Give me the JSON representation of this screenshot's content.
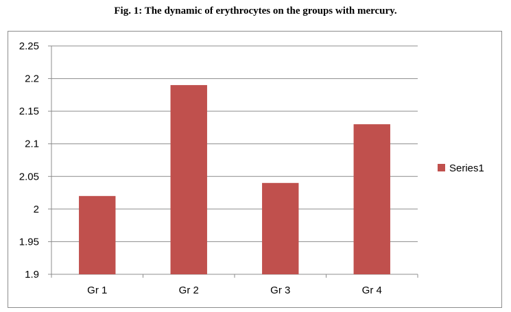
{
  "figure_title": "Fig. 1: The dynamic of erythrocytes on the groups with mercury.",
  "colors": {
    "bar": "#c0504d",
    "grid": "#8c8c8c",
    "axis": "#8c8c8c"
  },
  "chart_data": {
    "type": "bar",
    "title": "",
    "xlabel": "",
    "ylabel": "",
    "categories": [
      "Gr 1",
      "Gr 2",
      "Gr 3",
      "Gr 4"
    ],
    "series": [
      {
        "name": "Series1",
        "values": [
          2.02,
          2.19,
          2.04,
          2.13
        ]
      }
    ],
    "ylim": [
      1.9,
      2.25
    ],
    "yticks": [
      "1.9",
      "1.95",
      "2",
      "2.05",
      "2.1",
      "2.15",
      "2.2",
      "2.25"
    ],
    "grid": true,
    "legend_position": "right"
  }
}
